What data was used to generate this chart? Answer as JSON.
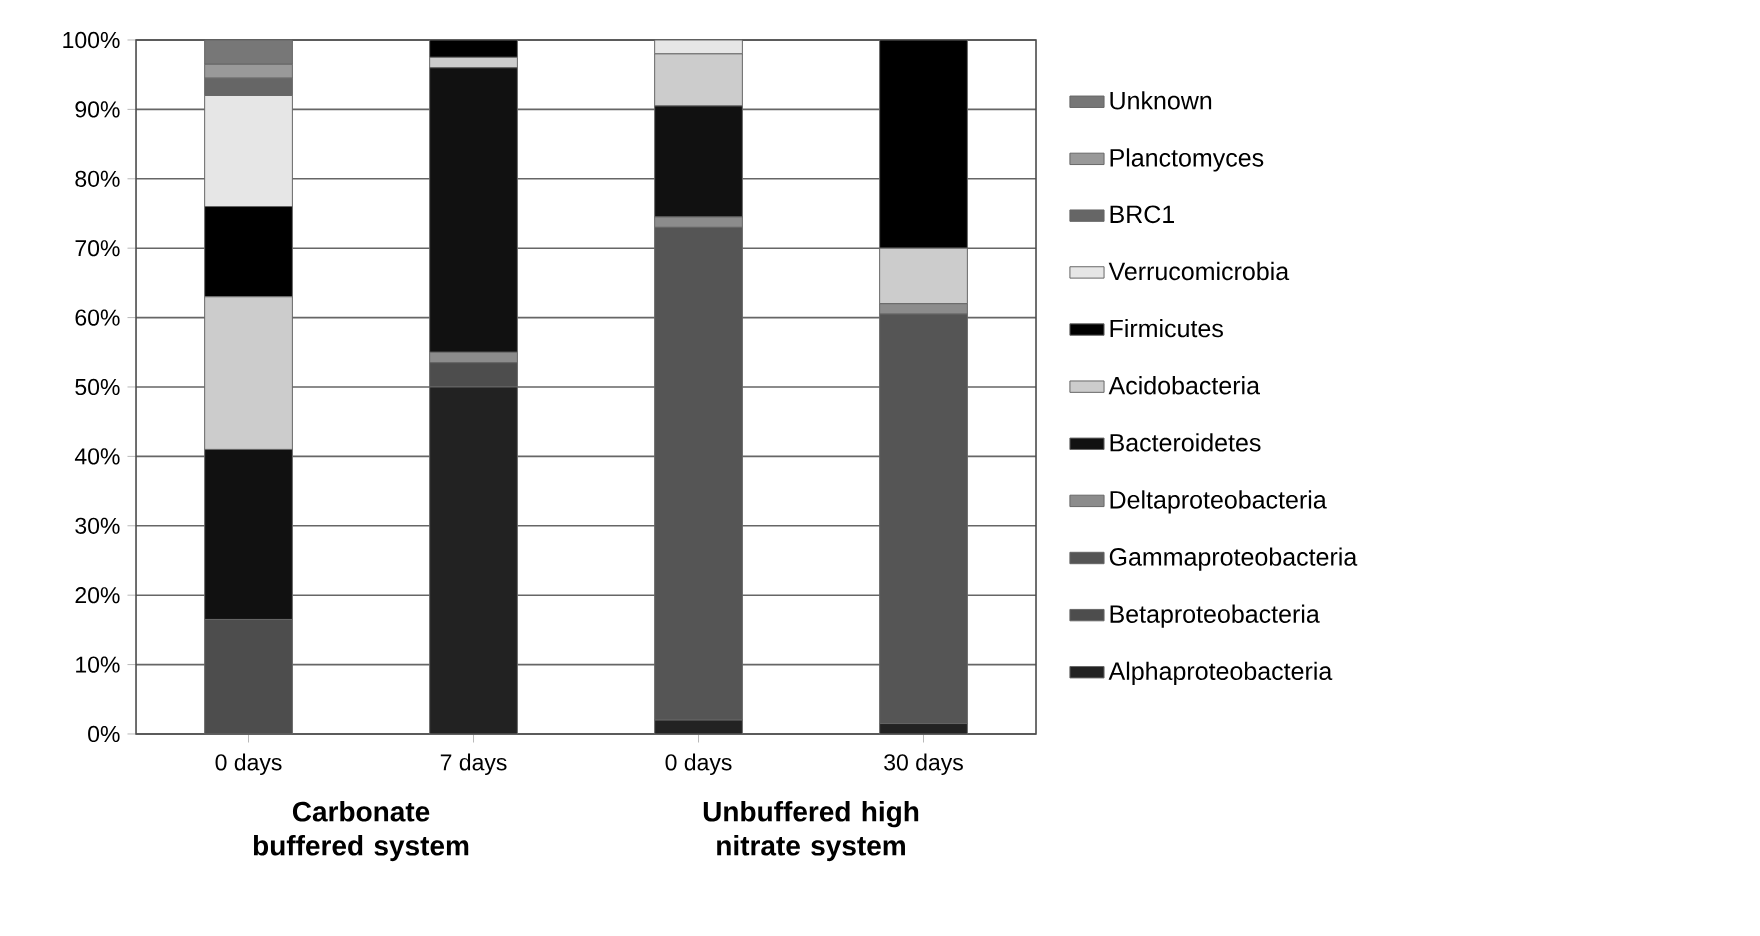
{
  "chart_data": {
    "type": "bar",
    "stacked": true,
    "categories": [
      "0 days",
      "7 days",
      "0 days",
      "30 days"
    ],
    "series": [
      {
        "name": "Alphaproteobacteria",
        "color": "#222222",
        "values": [
          0,
          50,
          2,
          1.5
        ]
      },
      {
        "name": "Betaproteobacteria",
        "color": "#4d4d4d",
        "values": [
          16.5,
          3.5,
          0,
          0
        ]
      },
      {
        "name": "Gammaproteobacteria",
        "color": "#555555",
        "values": [
          0,
          0,
          71,
          59
        ]
      },
      {
        "name": "Deltaproteobacteria",
        "color": "#8c8c8c",
        "values": [
          0,
          1.5,
          1.5,
          1.5
        ]
      },
      {
        "name": "Bacteroidetes",
        "color": "#111111",
        "values": [
          24.5,
          41,
          16,
          0
        ]
      },
      {
        "name": "Acidobacteria",
        "color": "#cccccc",
        "values": [
          22,
          1.5,
          7.5,
          8
        ]
      },
      {
        "name": "Firmicutes",
        "color": "#000000",
        "values": [
          13,
          2.5,
          0,
          30
        ]
      },
      {
        "name": "Verrucomicrobia",
        "color": "#e6e6e6",
        "values": [
          16,
          0,
          2,
          0
        ]
      },
      {
        "name": "BRC1",
        "color": "#666666",
        "values": [
          2.5,
          0,
          0,
          0
        ]
      },
      {
        "name": "Planctomyces",
        "color": "#999999",
        "values": [
          2,
          0,
          0,
          0
        ]
      },
      {
        "name": "Unknown",
        "color": "#777777",
        "values": [
          3.5,
          0,
          0,
          0
        ]
      }
    ],
    "ylim": [
      0,
      100
    ],
    "yticks": [
      {
        "value": 0,
        "label": "0%"
      },
      {
        "value": 10,
        "label": "10%"
      },
      {
        "value": 20,
        "label": "20%"
      },
      {
        "value": 30,
        "label": "30%"
      },
      {
        "value": 40,
        "label": "40%"
      },
      {
        "value": 50,
        "label": "50%"
      },
      {
        "value": 60,
        "label": "60%"
      },
      {
        "value": 70,
        "label": "70%"
      },
      {
        "value": 80,
        "label": "80%"
      },
      {
        "value": 90,
        "label": "90%"
      },
      {
        "value": 100,
        "label": "100%"
      }
    ],
    "grid": "y",
    "legend": "right",
    "annotations": [
      "Carbonate buffered system",
      "Unbuffered high nitrate system"
    ]
  }
}
